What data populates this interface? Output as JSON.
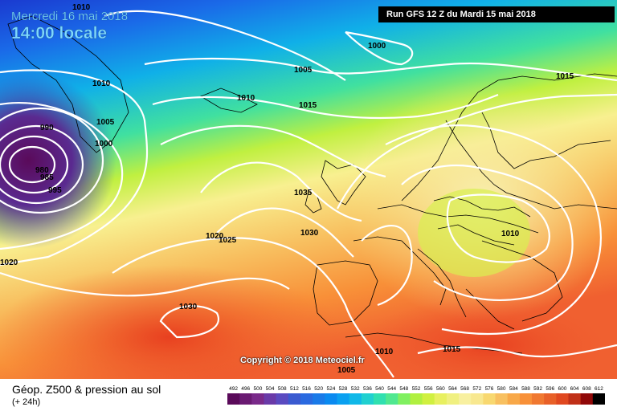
{
  "header": {
    "date_label": "Mercredi 16 mai 2018",
    "time_label": "14:00 locale",
    "run_label": "Run GFS 12 Z du Mardi 15 mai 2018"
  },
  "footer": {
    "copyright": "Copyright © 2018 Meteociel.fr",
    "legend_title": "Géop. Z500 & pression au sol",
    "legend_subtitle": "(+ 24h)"
  },
  "isobar_labels": [
    "1010",
    "1010",
    "1005",
    "1000",
    "990",
    "980",
    "985",
    "995",
    "1020",
    "1000",
    "1005",
    "1010",
    "1015",
    "1015",
    "1035",
    "1020",
    "1025",
    "1030",
    "1010",
    "1030",
    "1010",
    "1015",
    "1005"
  ],
  "color_scale": {
    "ticks": [
      "492",
      "496",
      "500",
      "504",
      "508",
      "512",
      "516",
      "520",
      "524",
      "528",
      "532",
      "536",
      "540",
      "544",
      "548",
      "552",
      "556",
      "560",
      "564",
      "568",
      "572",
      "576",
      "580",
      "584",
      "588",
      "592",
      "596",
      "600",
      "604",
      "608",
      "612"
    ],
    "colors": [
      "#5a0a5a",
      "#6a1a72",
      "#7a2a8a",
      "#6a3aa8",
      "#5a4ac0",
      "#3a5ad0",
      "#2a6ae0",
      "#1a7ae8",
      "#0a8af0",
      "#0aa0f0",
      "#10b8e8",
      "#20d0d0",
      "#30e0b0",
      "#50e890",
      "#80f060",
      "#b0f040",
      "#d0f040",
      "#e8f060",
      "#f0f080",
      "#f8f0a0",
      "#f8e890",
      "#f8d870",
      "#f8c060",
      "#f8a848",
      "#f89038",
      "#f07830",
      "#e86028",
      "#e04820",
      "#c03018",
      "#900808",
      "#000000"
    ]
  }
}
